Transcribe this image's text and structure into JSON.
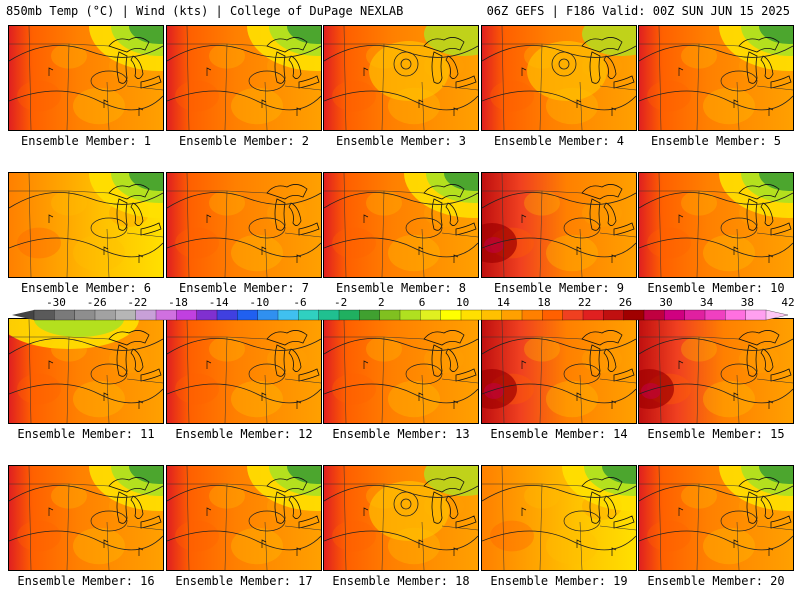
{
  "header": {
    "left": "850mb Temp (°C) | Wind (kts) | College of DuPage NEXLAB",
    "right": "06Z GEFS | F186 Valid: 00Z SUN JUN 15 2025"
  },
  "colorbar": {
    "labels": [
      "-30",
      "-26",
      "-22",
      "-18",
      "-14",
      "-10",
      "-6",
      "-2",
      "2",
      "6",
      "10",
      "14",
      "18",
      "22",
      "26",
      "30",
      "34",
      "38",
      "42"
    ],
    "colors": [
      "#5a5a5a",
      "#7a7a7a",
      "#8e8e8e",
      "#a2a2a2",
      "#b6b6b6",
      "#c8a0d8",
      "#d070e0",
      "#c040e0",
      "#8030d0",
      "#4040e0",
      "#2060f0",
      "#3090f0",
      "#40c0f0",
      "#30d0c0",
      "#20c090",
      "#20b060",
      "#40a030",
      "#80c020",
      "#b0e020",
      "#e0f020",
      "#ffff00",
      "#ffe000",
      "#ffc000",
      "#ffa000",
      "#ff8000",
      "#ff6000",
      "#f04020",
      "#e02020",
      "#c01010",
      "#a00000",
      "#c00040",
      "#d00080",
      "#e020a0",
      "#f040c0",
      "#ff70e0",
      "#ffa0f0"
    ]
  },
  "panels": [
    {
      "label": "Ensemble Member: 1",
      "style": "green-ne"
    },
    {
      "label": "Ensemble Member: 2",
      "style": "green-ne"
    },
    {
      "label": "Ensemble Member: 3",
      "style": "low"
    },
    {
      "label": "Ensemble Member: 4",
      "style": "low"
    },
    {
      "label": "Ensemble Member: 5",
      "style": "green-ne"
    },
    {
      "label": "Ensemble Member: 6",
      "style": "yellow"
    },
    {
      "label": "Ensemble Member: 7",
      "style": "warm"
    },
    {
      "label": "Ensemble Member: 8",
      "style": "green-ne"
    },
    {
      "label": "Ensemble Member: 9",
      "style": "hot"
    },
    {
      "label": "Ensemble Member: 10",
      "style": "green-ne"
    },
    {
      "label": "Ensemble Member: 11",
      "style": "green-nw"
    },
    {
      "label": "Ensemble Member: 12",
      "style": "warm"
    },
    {
      "label": "Ensemble Member: 13",
      "style": "warm"
    },
    {
      "label": "Ensemble Member: 14",
      "style": "hot"
    },
    {
      "label": "Ensemble Member: 15",
      "style": "hot"
    },
    {
      "label": "Ensemble Member: 16",
      "style": "green-ne"
    },
    {
      "label": "Ensemble Member: 17",
      "style": "green-ne"
    },
    {
      "label": "Ensemble Member: 18",
      "style": "low"
    },
    {
      "label": "Ensemble Member: 19",
      "style": "yellow"
    },
    {
      "label": "Ensemble Member: 20",
      "style": "green-ne"
    }
  ]
}
